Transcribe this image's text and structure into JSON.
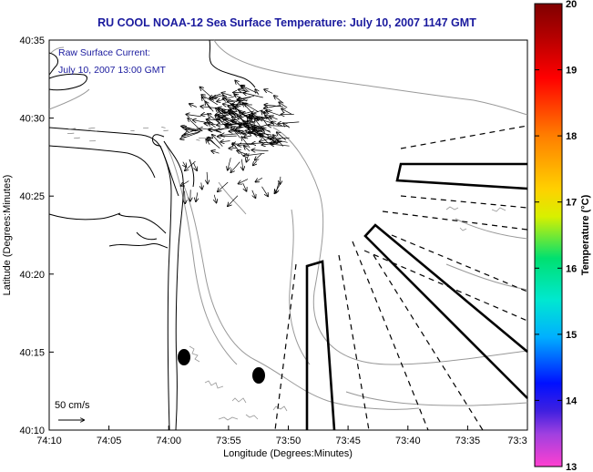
{
  "title": "RU COOL  NOAA-12  Sea Surface Temperature:  July 10, 2007 1147 GMT",
  "annotation": {
    "line1": "Raw Surface Current:",
    "line2": "July 10, 2007 13:00 GMT"
  },
  "scale_label": "50 cm/s",
  "x_axis": {
    "label": "Longitude (Degrees:Minutes)",
    "ticks": [
      "74:10",
      "74:05",
      "74:00",
      "73:55",
      "73:50",
      "73:45",
      "73:40",
      "73:35",
      "73:3"
    ]
  },
  "y_axis": {
    "label": "Latitude (Degrees:Minutes)",
    "ticks": [
      "40:35",
      "40:30",
      "40:25",
      "40:20",
      "40:15",
      "40:10"
    ]
  },
  "colorbar": {
    "label": "Temperature (°C)",
    "ticks": [
      "20",
      "19",
      "18",
      "17",
      "16",
      "15",
      "14",
      "13"
    ],
    "colors": [
      "#8b0000",
      "#ff0000",
      "#ff8c00",
      "#ffff00",
      "#00ff7f",
      "#00ffff",
      "#0000ff",
      "#ff44cc"
    ]
  },
  "colors": {
    "title": "#1a1a9e",
    "coast": "#000000",
    "bathymetry": "#999999"
  }
}
